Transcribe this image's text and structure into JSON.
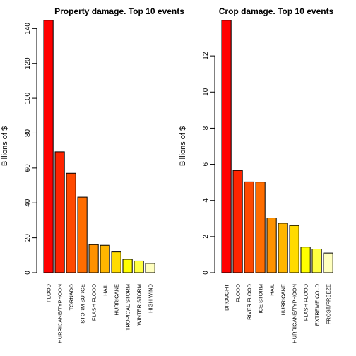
{
  "chart_data": [
    {
      "type": "bar",
      "title": "Property damage. Top 10 events",
      "ylabel": "Billions of $",
      "xlabel": "",
      "ylim": [
        0,
        145
      ],
      "yticks": [
        0,
        20,
        40,
        60,
        80,
        100,
        120,
        140
      ],
      "categories": [
        "FLOOD",
        "HURRICANE/TYPHOON",
        "TORNADO",
        "STORM SURGE",
        "FLASH FLOOD",
        "HAIL",
        "HURRICANE",
        "TROPICAL STORM",
        "WINTER STORM",
        "HIGH WIND"
      ],
      "values": [
        144.7,
        69.3,
        57.0,
        43.3,
        16.1,
        15.7,
        11.9,
        7.7,
        6.7,
        5.3
      ],
      "colors": [
        "#FF0000",
        "#FF2400",
        "#FF4900",
        "#FF6D00",
        "#FF9200",
        "#FFB600",
        "#FFDB00",
        "#FFFF00",
        "#FFFF40",
        "#FFFFBF"
      ]
    },
    {
      "type": "bar",
      "title": "Crop damage. Top 10 events",
      "ylabel": "Billions of $",
      "xlabel": "",
      "ylim": [
        0,
        14
      ],
      "yticks": [
        0,
        2,
        4,
        6,
        8,
        10,
        12
      ],
      "categories": [
        "DROUGHT",
        "FLOOD",
        "RIVER FLOOD",
        "ICE STORM",
        "HAIL",
        "HURRICANE",
        "HURRICANE/TYPHOON",
        "FLASH FLOOD",
        "EXTREME COLD",
        "FROST/FREEZE"
      ],
      "values": [
        13.97,
        5.66,
        5.03,
        5.02,
        3.03,
        2.74,
        2.61,
        1.42,
        1.31,
        1.09
      ],
      "colors": [
        "#FF0000",
        "#FF2400",
        "#FF4900",
        "#FF6D00",
        "#FF9200",
        "#FFB600",
        "#FFDB00",
        "#FFFF00",
        "#FFFF40",
        "#FFFFBF"
      ]
    }
  ]
}
